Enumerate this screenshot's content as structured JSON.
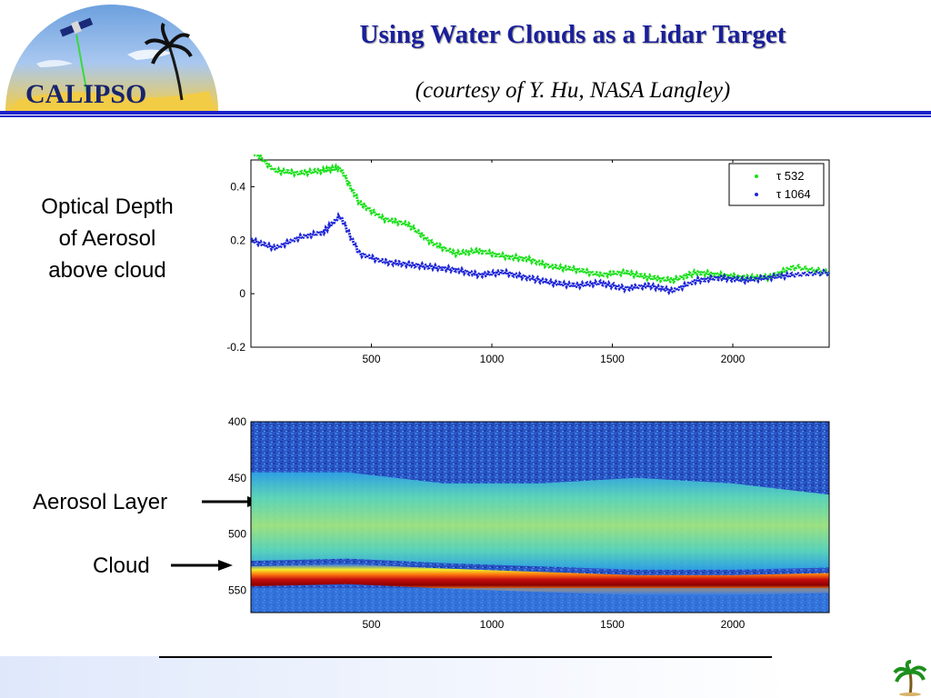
{
  "slide": {
    "title": "Using Water Clouds as a Lidar Target",
    "subtitle": "(courtesy of Y. Hu, NASA Langley)",
    "logo_text": "CALIPSO",
    "colors": {
      "title": "#1a1f9a",
      "rule": "#1a22c8",
      "accent": "#f3cc45"
    }
  },
  "labels": {
    "optical_depth": [
      "Optical Depth",
      "of Aerosol",
      "above cloud"
    ],
    "aerosol_layer": "Aerosol Layer",
    "cloud": "Cloud"
  },
  "icons": {
    "logo": "calipso-logo",
    "arrow": "arrow-right-icon",
    "palm": "palm-tree-icon"
  },
  "chart_data": [
    {
      "type": "line",
      "title": "",
      "xlabel": "",
      "ylabel": "",
      "xlim": [
        0,
        2400
      ],
      "ylim": [
        -0.2,
        0.5
      ],
      "xticks": [
        "500",
        "1000",
        "1500",
        "2000"
      ],
      "yticks": [
        "0.4",
        "0.2",
        "0",
        "-0.2"
      ],
      "legend_position": "top-right",
      "series": [
        {
          "name": "τ 532",
          "color": "#19e019",
          "x": [
            0,
            100,
            200,
            300,
            370,
            450,
            550,
            650,
            750,
            850,
            950,
            1050,
            1150,
            1250,
            1350,
            1450,
            1550,
            1650,
            1750,
            1850,
            1950,
            2050,
            2150,
            2250,
            2400
          ],
          "y": [
            0.54,
            0.46,
            0.45,
            0.46,
            0.47,
            0.34,
            0.28,
            0.26,
            0.19,
            0.15,
            0.16,
            0.14,
            0.13,
            0.1,
            0.09,
            0.07,
            0.08,
            0.06,
            0.05,
            0.08,
            0.07,
            0.06,
            0.06,
            0.1,
            0.08
          ]
        },
        {
          "name": "τ 1064",
          "color": "#1f26d8",
          "x": [
            0,
            100,
            200,
            300,
            370,
            450,
            550,
            650,
            750,
            850,
            950,
            1050,
            1150,
            1250,
            1350,
            1450,
            1550,
            1650,
            1750,
            1850,
            1950,
            2050,
            2150,
            2250,
            2400
          ],
          "y": [
            0.2,
            0.17,
            0.21,
            0.23,
            0.29,
            0.15,
            0.12,
            0.11,
            0.1,
            0.09,
            0.07,
            0.08,
            0.06,
            0.04,
            0.03,
            0.04,
            0.02,
            0.03,
            0.01,
            0.05,
            0.06,
            0.05,
            0.06,
            0.07,
            0.08
          ]
        }
      ]
    },
    {
      "type": "heatmap",
      "title": "",
      "xlabel": "",
      "ylabel": "",
      "xlim": [
        0,
        2400
      ],
      "ylim": [
        400,
        570
      ],
      "xticks": [
        "500",
        "1000",
        "1500",
        "2000"
      ],
      "yticks": [
        "400",
        "450",
        "500",
        "550"
      ],
      "aerosol_layer_top": [
        445,
        445,
        455,
        455,
        450,
        455,
        465
      ],
      "cloud_top": [
        532,
        530,
        534,
        537,
        540,
        540,
        538
      ],
      "x_samples": [
        0,
        400,
        800,
        1200,
        1600,
        2000,
        2400
      ]
    }
  ]
}
